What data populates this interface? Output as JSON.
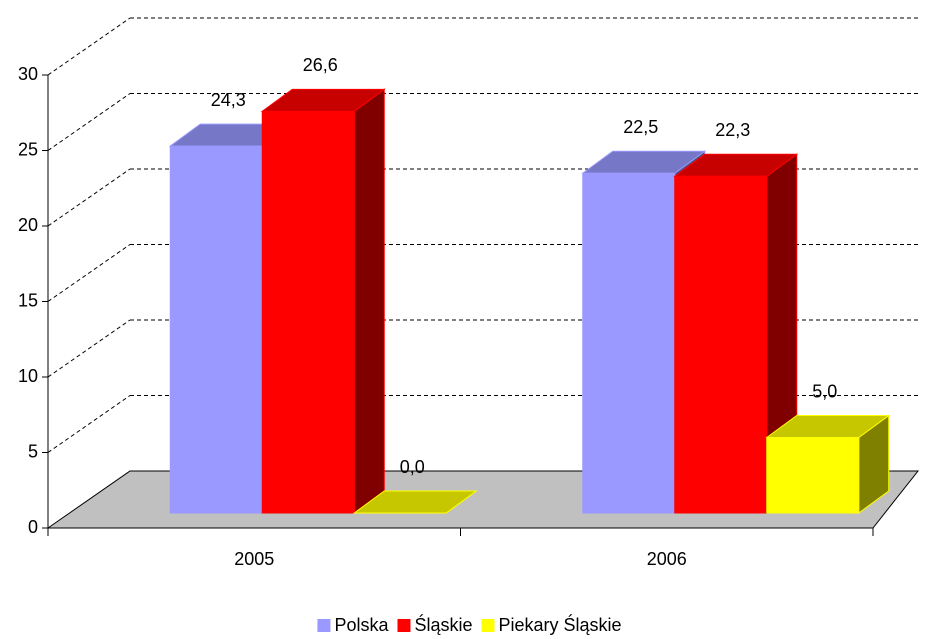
{
  "chart_data": {
    "type": "bar3d",
    "categories": [
      "2005",
      "2006"
    ],
    "series": [
      {
        "name": "Polska",
        "color": "#9999ff",
        "values": [
          24.3,
          22.5
        ],
        "value_labels": [
          "24,3",
          "22,5"
        ]
      },
      {
        "name": "Śląskie",
        "color": "#ff0000",
        "values": [
          26.6,
          22.3
        ],
        "value_labels": [
          "26,6",
          "22,3"
        ]
      },
      {
        "name": "Piekary Śląskie",
        "color": "#ffff00",
        "values": [
          0.0,
          5.0
        ],
        "value_labels": [
          "0,0",
          "5,0"
        ]
      }
    ],
    "ylim": [
      0,
      30
    ],
    "yticks": [
      0,
      5,
      10,
      15,
      20,
      25,
      30
    ],
    "grid": true,
    "legend": "bottom"
  }
}
